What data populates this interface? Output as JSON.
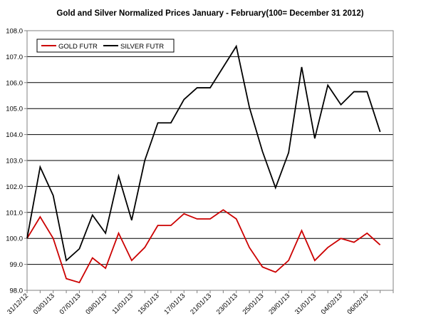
{
  "chart_data": {
    "type": "line",
    "title": "Gold and Silver Normalized Prices January - February(100= December 31 2012)",
    "xlabel": "",
    "ylabel": "",
    "ylim": [
      98.0,
      108.0
    ],
    "y_ticks": [
      "98.0",
      "99.0",
      "100.0",
      "101.0",
      "102.0",
      "103.0",
      "104.0",
      "105.0",
      "106.0",
      "107.0",
      "108.0"
    ],
    "x_tick_labels": [
      "31/12/12",
      "03/01/13",
      "07/01/13",
      "09/01/13",
      "11/01/13",
      "15/01/13",
      "17/01/13",
      "21/01/13",
      "23/01/13",
      "25/01/13",
      "29/01/13",
      "31/01/13",
      "04/02/13",
      "06/02/13"
    ],
    "grid": "horizontal",
    "legend": "top-left",
    "series": [
      {
        "name": "GOLD FUTR",
        "color": "#cc0000",
        "values": [
          100.0,
          100.83,
          100.0,
          98.45,
          98.3,
          99.25,
          98.85,
          100.2,
          99.15,
          99.65,
          100.5,
          100.5,
          100.95,
          100.75,
          100.75,
          101.1,
          100.75,
          99.65,
          98.9,
          98.7,
          99.15,
          100.3,
          99.15,
          99.65,
          100.0,
          99.85,
          100.2,
          99.75
        ]
      },
      {
        "name": "SILVER FUTR",
        "color": "#000000",
        "values": [
          100.0,
          102.75,
          101.65,
          99.15,
          99.6,
          100.9,
          100.2,
          102.4,
          100.7,
          103.0,
          104.45,
          104.45,
          105.35,
          105.8,
          105.8,
          106.6,
          107.4,
          105.05,
          103.35,
          101.95,
          103.3,
          106.6,
          103.85,
          105.9,
          105.15,
          105.65,
          105.65,
          104.1
        ]
      }
    ]
  }
}
